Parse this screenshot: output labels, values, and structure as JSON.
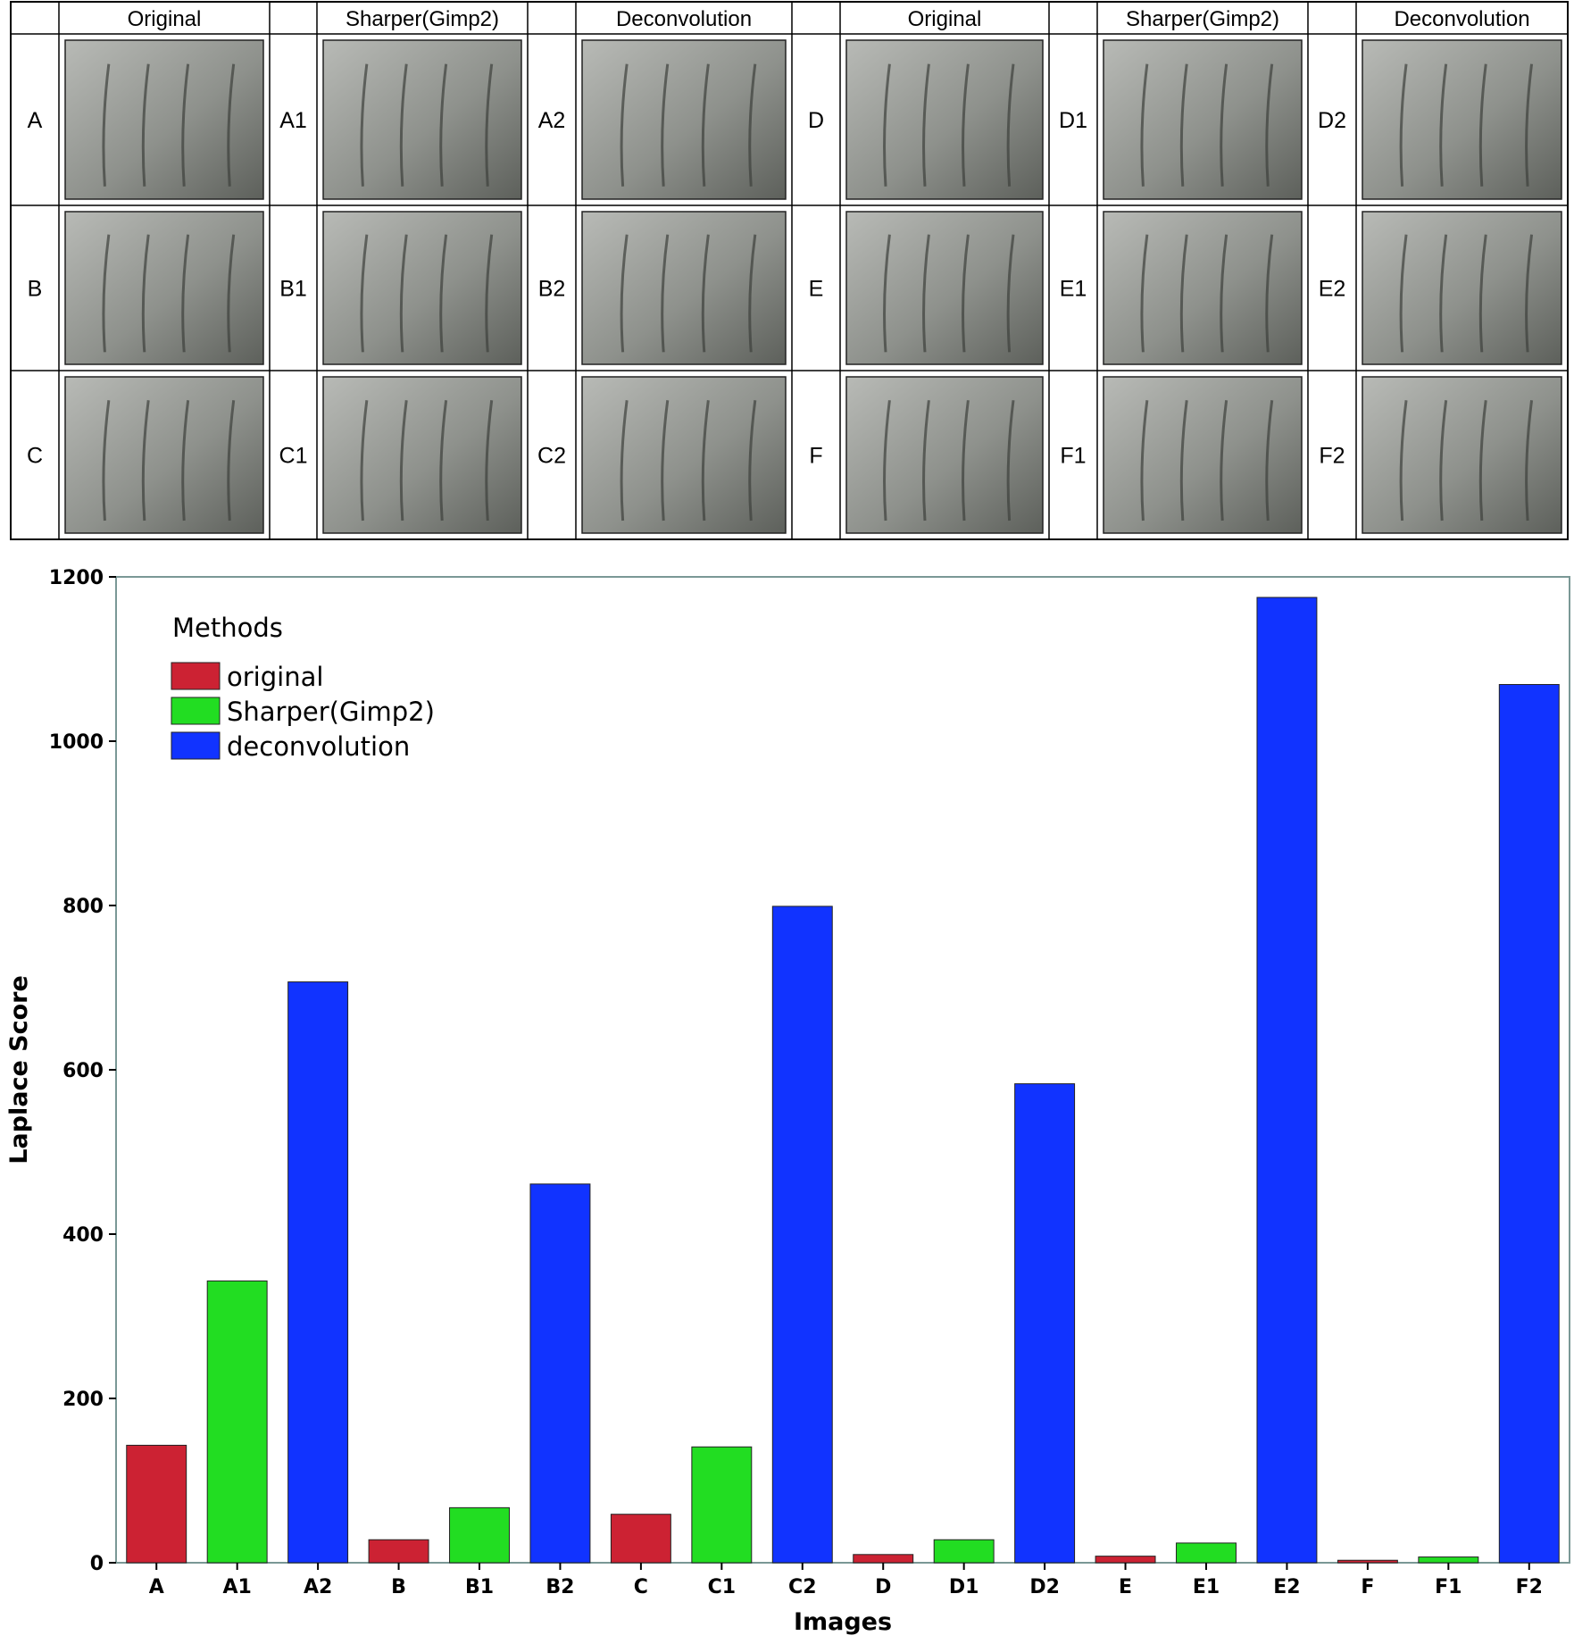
{
  "image_grid": {
    "column_headers": [
      "Original",
      "Sharper(Gimp2)",
      "Deconvolution",
      "Original",
      "Sharper(Gimp2)",
      "Deconvolution"
    ],
    "rows": [
      [
        "A",
        "A1",
        "A2",
        "D",
        "D1",
        "D2"
      ],
      [
        "B",
        "B1",
        "B2",
        "E",
        "E1",
        "E2"
      ],
      [
        "C",
        "C1",
        "C2",
        "F",
        "F1",
        "F2"
      ]
    ]
  },
  "chart_data": {
    "type": "bar",
    "title": "",
    "xlabel": "Images",
    "ylabel": "Laplace Score",
    "ylim": [
      0,
      1200
    ],
    "yticks": [
      0,
      200,
      400,
      600,
      800,
      1000,
      1200
    ],
    "legend_title": "Methods",
    "legend_position": "top-left",
    "categories": [
      "A",
      "A1",
      "A2",
      "B",
      "B1",
      "B2",
      "C",
      "C1",
      "C2",
      "D",
      "D1",
      "D2",
      "E",
      "E1",
      "E2",
      "F",
      "F1",
      "F2"
    ],
    "values": [
      143,
      343,
      707,
      28,
      67,
      461,
      59,
      141,
      799,
      10,
      28,
      583,
      8,
      24,
      1175,
      3,
      7,
      1069
    ],
    "methods": [
      "original",
      "sharper",
      "deconvolution",
      "original",
      "sharper",
      "deconvolution",
      "original",
      "sharper",
      "deconvolution",
      "original",
      "sharper",
      "deconvolution",
      "original",
      "sharper",
      "deconvolution",
      "original",
      "sharper",
      "deconvolution"
    ],
    "series": [
      {
        "key": "original",
        "name": "original",
        "color": "#cc2233"
      },
      {
        "key": "sharper",
        "name": "Sharper(Gimp2)",
        "color": "#22dd22"
      },
      {
        "key": "deconvolution",
        "name": "deconvolution",
        "color": "#1133ff"
      }
    ],
    "colors": {
      "frame": "#7a9896",
      "bar_outline": "#222222"
    }
  }
}
